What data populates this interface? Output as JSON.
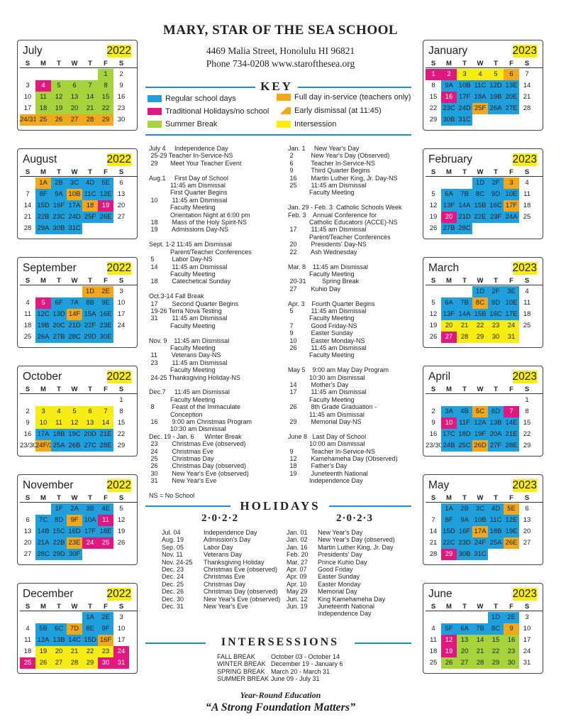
{
  "school": {
    "name": "MARY, STAR OF THE SEA SCHOOL",
    "address": "4469 Malia Street, Honolulu HI  96821",
    "phone": "Phone 734-0208    www.starofthesea.org"
  },
  "key": {
    "title": "KEY",
    "items": [
      {
        "label": "Regular school days",
        "color": "#1fa0dc"
      },
      {
        "label": "Full day in-service (teachers only)",
        "color": "#f2a81d"
      },
      {
        "label": "Traditional Holidays/no school",
        "color": "#e0187f"
      },
      {
        "label": "Early dismissal (at 11:45)",
        "color": "#f2a81d"
      },
      {
        "label": "Summer Break",
        "color": "#a6d33c"
      },
      {
        "label": "Intersession",
        "color": "#f7ec13"
      }
    ]
  },
  "dow": [
    "S",
    "M",
    "T",
    "W",
    "T",
    "F",
    "S"
  ],
  "months_left": [
    {
      "name": "July",
      "year": "2022",
      "offset": 5,
      "cells": [
        "1",
        "2",
        "3",
        "4",
        "5",
        "6",
        "7",
        "8",
        "9",
        "10",
        "11",
        "12",
        "13",
        "14",
        "15",
        "16",
        "17",
        "18",
        "19",
        "20",
        "21",
        "22",
        "23",
        "24/31",
        "25",
        "26",
        "27",
        "28",
        "29",
        "30"
      ],
      "colors": [
        "g",
        "",
        "",
        "p",
        "g",
        "g",
        "g",
        "g",
        "",
        "",
        "g",
        "g",
        "g",
        "g",
        "g",
        "",
        "",
        "g",
        "g",
        "g",
        "g",
        "g",
        "",
        "o",
        "o",
        "o",
        "o",
        "o",
        "o",
        ""
      ]
    },
    {
      "name": "August",
      "year": "2022",
      "offset": 1,
      "cells": [
        "1A",
        "2B",
        "3C",
        "4D",
        "5E",
        "6",
        "7",
        "8F",
        "9A",
        "10B",
        "11C",
        "12E",
        "13",
        "14",
        "15D",
        "16F",
        "17A",
        "18",
        "19",
        "20",
        "21",
        "22B",
        "23C",
        "24D",
        "25F",
        "26E",
        "27",
        "28",
        "29A",
        "30B",
        "31C"
      ],
      "colors": [
        "o",
        "b",
        "b",
        "b",
        "b",
        "",
        "",
        "b",
        "b",
        "o",
        "b",
        "b",
        "",
        "",
        "b",
        "b",
        "b",
        "o",
        "p",
        "",
        "",
        "b",
        "b",
        "b",
        "b",
        "b",
        "",
        "",
        "b",
        "b",
        "b"
      ]
    },
    {
      "name": "September",
      "year": "2022",
      "offset": 4,
      "cells": [
        "1D",
        "2E",
        "3",
        "4",
        "5",
        "6F",
        "7A",
        "8B",
        "9E",
        "10",
        "11",
        "12C",
        "13D",
        "14F",
        "15A",
        "16E",
        "17",
        "18",
        "19B",
        "20C",
        "21D",
        "22F",
        "23E",
        "24",
        "25",
        "26A",
        "27B",
        "28C",
        "29D",
        "30E"
      ],
      "colors": [
        "o",
        "o",
        "",
        "",
        "p",
        "b",
        "b",
        "b",
        "b",
        "",
        "",
        "b",
        "b",
        "o",
        "b",
        "b",
        "",
        "",
        "b",
        "b",
        "b",
        "b",
        "b",
        "",
        "",
        "b",
        "b",
        "b",
        "b",
        "b"
      ]
    },
    {
      "name": "October",
      "year": "2022",
      "offset": 6,
      "cells": [
        "1",
        "2",
        "3",
        "4",
        "5",
        "6",
        "7",
        "8",
        "9",
        "10",
        "11",
        "12",
        "13",
        "14",
        "15",
        "16",
        "17A",
        "18B",
        "19C",
        "20D",
        "21E",
        "22",
        "23/30",
        "24F/31C",
        "25A",
        "26B",
        "27C",
        "28E",
        "29"
      ],
      "colors": [
        "",
        "",
        "y",
        "y",
        "y",
        "y",
        "y",
        "",
        "",
        "y",
        "y",
        "y",
        "y",
        "y",
        "",
        "",
        "b",
        "b",
        "b",
        "b",
        "b",
        "",
        "",
        "o",
        "b",
        "b",
        "b",
        "b",
        ""
      ]
    },
    {
      "name": "November",
      "year": "2022",
      "offset": 2,
      "cells": [
        "1F",
        "2A",
        "3B",
        "4E",
        "5",
        "6",
        "7C",
        "8D",
        "9F",
        "10A",
        "11",
        "12",
        "13",
        "14B",
        "15C",
        "16D",
        "17F",
        "18E",
        "19",
        "20",
        "21A",
        "22B",
        "23E",
        "24",
        "25",
        "26",
        "27",
        "28C",
        "29D",
        "30F"
      ],
      "colors": [
        "b",
        "b",
        "b",
        "b",
        "",
        "",
        "b",
        "b",
        "o",
        "b",
        "p",
        "",
        "",
        "b",
        "b",
        "b",
        "b",
        "b",
        "",
        "",
        "b",
        "b",
        "o",
        "p",
        "p",
        "",
        "",
        "b",
        "b",
        "b"
      ]
    },
    {
      "name": "December",
      "year": "2022",
      "offset": 4,
      "cells": [
        "1A",
        "2E",
        "3",
        "4",
        "5B",
        "6C",
        "7D",
        "8E",
        "9F",
        "10",
        "11",
        "12A",
        "13B",
        "14C",
        "15D",
        "16F",
        "17",
        "18",
        "19",
        "20",
        "21",
        "22",
        "23",
        "24",
        "25",
        "26",
        "27",
        "28",
        "29",
        "30",
        "31"
      ],
      "colors": [
        "b",
        "b",
        "",
        "",
        "b",
        "b",
        "o",
        "b",
        "b",
        "",
        "",
        "b",
        "b",
        "b",
        "b",
        "o",
        "",
        "",
        "y",
        "y",
        "y",
        "y",
        "y",
        "p",
        "p",
        "y",
        "y",
        "y",
        "y",
        "p",
        "p"
      ]
    }
  ],
  "months_right": [
    {
      "name": "January",
      "year": "2023",
      "offset": 0,
      "cells": [
        "1",
        "2",
        "3",
        "4",
        "5",
        "6",
        "7",
        "8",
        "9A",
        "10B",
        "11C",
        "12D",
        "13E",
        "14",
        "15",
        "16",
        "17F",
        "18A",
        "19B",
        "20E",
        "21",
        "22",
        "23C",
        "24D",
        "25F",
        "26A",
        "27E",
        "28",
        "29",
        "30B",
        "31C"
      ],
      "colors": [
        "p",
        "p",
        "y",
        "y",
        "y",
        "o",
        "",
        "",
        "b",
        "b",
        "b",
        "b",
        "b",
        "",
        "",
        "p",
        "b",
        "b",
        "b",
        "b",
        "",
        "",
        "b",
        "b",
        "o",
        "b",
        "b",
        "",
        "",
        "b",
        "b"
      ]
    },
    {
      "name": "February",
      "year": "2023",
      "offset": 3,
      "cells": [
        "1D",
        "2F",
        "3",
        "4",
        "5",
        "6A",
        "7B",
        "8C",
        "9D",
        "10E",
        "11",
        "12",
        "13F",
        "14A",
        "15B",
        "16C",
        "17F",
        "18",
        "19",
        "20",
        "21D",
        "22E",
        "23F",
        "24A",
        "25",
        "26",
        "27B",
        "28C"
      ],
      "colors": [
        "b",
        "b",
        "o",
        "",
        "",
        "b",
        "b",
        "b",
        "b",
        "b",
        "",
        "",
        "b",
        "b",
        "b",
        "b",
        "o",
        "",
        "",
        "p",
        "b",
        "b",
        "b",
        "b",
        "",
        "",
        "b",
        "b"
      ]
    },
    {
      "name": "March",
      "year": "2023",
      "offset": 3,
      "cells": [
        "1D",
        "2F",
        "3E",
        "4",
        "5",
        "6A",
        "7B",
        "8C",
        "9D",
        "10E",
        "11",
        "12",
        "13F",
        "14A",
        "15B",
        "16C",
        "17E",
        "18",
        "19",
        "20",
        "21",
        "22",
        "23",
        "24",
        "25",
        "26",
        "27",
        "28",
        "29",
        "30",
        "31"
      ],
      "colors": [
        "b",
        "b",
        "b",
        "",
        "",
        "b",
        "b",
        "o",
        "b",
        "b",
        "",
        "",
        "b",
        "b",
        "b",
        "b",
        "b",
        "",
        "",
        "y",
        "y",
        "y",
        "y",
        "y",
        "",
        "",
        "p",
        "y",
        "y",
        "y",
        "y"
      ]
    },
    {
      "name": "April",
      "year": "2023",
      "offset": 6,
      "cells": [
        "1",
        "2",
        "3A",
        "4B",
        "5C",
        "6D",
        "7",
        "8",
        "9",
        "10",
        "11F",
        "12A",
        "13B",
        "14E",
        "15",
        "16",
        "17C",
        "18D",
        "19F",
        "20A",
        "21E",
        "22",
        "23/30",
        "24B",
        "25C",
        "26D",
        "27F",
        "28E",
        "29"
      ],
      "colors": [
        "",
        "",
        "b",
        "b",
        "o",
        "b",
        "p",
        "",
        "",
        "p",
        "b",
        "b",
        "b",
        "b",
        "",
        "",
        "b",
        "b",
        "b",
        "b",
        "b",
        "",
        "",
        "b",
        "b",
        "o",
        "b",
        "b",
        ""
      ]
    },
    {
      "name": "May",
      "year": "2023",
      "offset": 1,
      "cells": [
        "1A",
        "2B",
        "3C",
        "4D",
        "5E",
        "6",
        "7",
        "8F",
        "9A",
        "10B",
        "11C",
        "12E",
        "13",
        "14",
        "15D",
        "16F",
        "17A",
        "18B",
        "19E",
        "20",
        "21",
        "22C",
        "23D",
        "24F",
        "25A",
        "26E",
        "27",
        "28",
        "29",
        "30B",
        "31C"
      ],
      "colors": [
        "b",
        "b",
        "b",
        "b",
        "o",
        "",
        "",
        "b",
        "b",
        "b",
        "b",
        "b",
        "",
        "",
        "b",
        "b",
        "o",
        "b",
        "b",
        "",
        "",
        "b",
        "b",
        "b",
        "b",
        "o",
        "",
        "",
        "p",
        "b",
        "b"
      ]
    },
    {
      "name": "June",
      "year": "2023",
      "offset": 4,
      "cells": [
        "1D",
        "2E",
        "3",
        "4",
        "5F",
        "6A",
        "7B",
        "8C",
        "9",
        "10",
        "11",
        "12",
        "13",
        "14",
        "15",
        "16",
        "17",
        "18",
        "19",
        "20",
        "21",
        "22",
        "23",
        "24",
        "25",
        "26",
        "27",
        "28",
        "29",
        "30",
        "31"
      ],
      "colors": [
        "b",
        "b",
        "",
        "",
        "b",
        "b",
        "b",
        "b",
        "o",
        "",
        "",
        "p",
        "g",
        "g",
        "g",
        "g",
        "",
        "",
        "p",
        "g",
        "g",
        "g",
        "g",
        "",
        "",
        "g",
        "g",
        "g",
        "g",
        "g",
        ""
      ]
    }
  ],
  "events_left": "July 4     Independence Day\n 25-29 Teacher In-Service-NS\n 29       Meet Your Teacher Event\n\nAug.1     First Day of School\n            11:45 am Dismissal\n            First Quarter Begins\n 10        11:45 am Dismissal\n            Faculty Meeting\n            Orientation Night at 6:00 pm\n 18        Mass of the Holy Spirit-NS\n 19        Admissions Day-NS\n\nSept. 1-2 11:45 am Dismissal\n            Parent/Teacher Conferences\n 5          Labor Day-NS\n 14        11:45 am Dismissal\n            Faculty Meeting\n 18        Catechetical Sunday\n\nOct.3-14 Fall Break\n 17        Second Quarter Begins\n 19-26 Terra Nova Testing\n 31        11:45 am Dismissal\n            Faculty Meeting\n\nNov. 9    11:45 am Dismissal\n            Faculty Meeting\n 11        Veterans Day-NS\n 23        11:45 am Dismissal\n            Faculty Meeting\n 24-25 Thanksgiving Holiday-NS\n\nDec.7     11:45 am Dismissal\n            Faculty Meeting\n 8          Feast of the Immaculate\n            Conception\n 16        9:00 am Christmas Program\n            10:30 am Dismissal\nDec. 19 - Jan. 6      Winter Break\n 23        Christmas Eve (observed)\n 24        Christmas Eve\n 25        Christmas Day\n 26        Christmas Day (observed)\n 30        New Year's Eve (observed)\n 31        New Year's Eve\n\nNS = No School",
  "events_right": "Jan. 1     New Year's Day\n 2          New Year's Day (Observed)\n 6          Teacher In-Service-NS\n 9          Third Quarter Begins\n 16        Martin Luther King, Jr. Day-NS\n 25        11:45 am Dismissal\n            Faculty Meeting\n\nJan. 29 - Feb. 3  Catholic Schools Week\nFeb. 3    Annual Conference for\n            Catholic Educators (ACCE)-NS\n 17        11:45 am Dismissal\n            Parent/Teacher Conferences\n 20        Presidents' Day-NS\n 22        Ash Wednesday\n\nMar. 8    11:45 am Dismissal\n            Faculty Meeting\n 20-31         Spring Break\n 27        Kuhio Day\n\nApr. 3    Fourth Quarter Begins\n 5          11:45 am Dismissal\n            Faculty Meeting\n 7          Good Friday-NS\n 9          Easter Sunday\n 10        Easter Monday-NS\n 26        11:45 am Dismissal\n            Faculty Meeting\n\nMay 5    9:00 am May Day Program\n            10:30 am Dismissal\n 14        Mother's Day\n 17        11:45 am Dismissal\n            Faculty Meeting\n 26        8th Grade Graduation -\n            11:45 am Dismissal\n 29        Memorial Day-NS\n\nJune 8   Last Day of School\n            10:00 am Dismissal\n 9          Teacher In-Service-NS\n 12        Kamehameha Day (Observed)\n 18        Father's Day\n 19        Juneteenth National\n            Independence Day",
  "holidays": {
    "title": "HOLIDAYS",
    "year1": "2·0·2·2",
    "year2": "2·0·2·3",
    "left_dates": "Jul. 04\nAug. 19\nSep. 05\nNov. 11\nNov. 24-25\nDec. 23\nDec. 24\nDec. 25\nDec. 26\nDec. 30\nDec. 31",
    "left_names": "Independence Day\nAdmission's Day\nLabor Day\nVeterans Day\nThanksgiving Holiday\nChristmas Eve (observed)\nChristmas Eve\nChristmas Day\nChristmas Day (observed)\nNew Year's Eve (observed)\nNew Year's Eve",
    "right_dates": "Jan. 01\nJan. 02\nJan. 16\nFeb. 20\nMar. 27\nApr. 07\nApr. 09\nApr. 10\nMay 29\nJun. 12\nJun. 19",
    "right_names": "New Year's Day\nNew Year's Day (observed)\nMartin Luther King, Jr. Day\nPresidents' Day\nPrince Kuhio Day\nGood Friday\nEaster Sunday\nEaster Monday\nMemorial Day\nKing Kamehameha Day\nJuneteenth National\nIndependence Day"
  },
  "intersessions": {
    "title": "INTERSESSIONS",
    "names": "FALL BREAK\nWINTER BREAK\nSPRING BREAK\nSUMMER BREAK",
    "dates": "October 03 - October 14\nDecember 19 - January 6\nMarch 20 - March 31\nJune 09 - July 31"
  },
  "footer": {
    "line1": "Year-Round Education",
    "line2": "“A Strong Foundation Matters”"
  }
}
